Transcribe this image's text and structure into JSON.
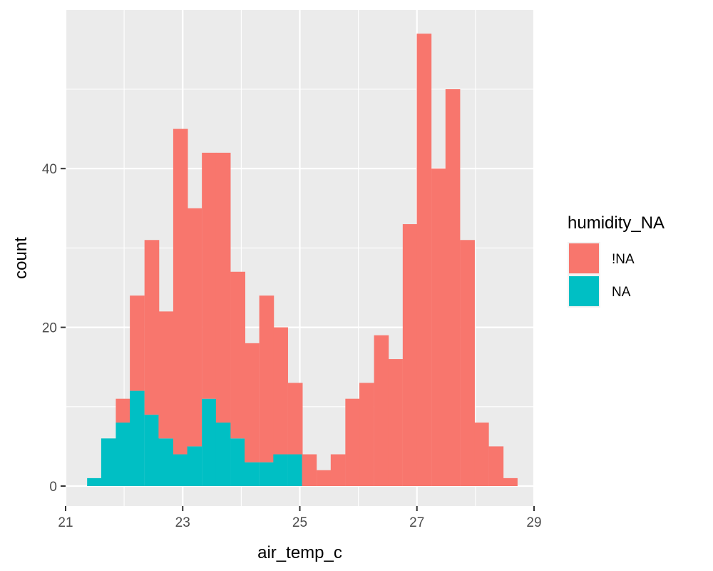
{
  "chart_data": {
    "type": "bar",
    "subtype": "stacked-histogram",
    "title": "",
    "xlabel": "air_temp_c",
    "ylabel": "count",
    "xlim": [
      21,
      29
    ],
    "ylim": [
      -2.5,
      60
    ],
    "x_ticks": [
      21,
      23,
      25,
      27,
      29
    ],
    "x_minor_ticks": [
      22,
      24,
      26,
      28
    ],
    "y_ticks": [
      0,
      20,
      40
    ],
    "y_minor_ticks": [
      10,
      30,
      50
    ],
    "bin_width": 0.245,
    "bin_centers": [
      21.49,
      21.73,
      21.98,
      22.22,
      22.47,
      22.71,
      22.96,
      23.2,
      23.45,
      23.69,
      23.94,
      24.18,
      24.43,
      24.67,
      24.92,
      25.16,
      25.41,
      25.65,
      25.9,
      26.14,
      26.39,
      26.63,
      26.88,
      27.12,
      27.37,
      27.61,
      27.86,
      28.1,
      28.35,
      28.59
    ],
    "series": [
      {
        "name": "!NA",
        "color": "#F8766D",
        "values": [
          0,
          0,
          3,
          12,
          22,
          16,
          41,
          30,
          31,
          34,
          21,
          15,
          21,
          16,
          9,
          4,
          2,
          4,
          11,
          13,
          19,
          16,
          33,
          57,
          40,
          50,
          31,
          8,
          5,
          1
        ]
      },
      {
        "name": "NA",
        "color": "#00BFC4",
        "values": [
          1,
          6,
          8,
          12,
          9,
          6,
          4,
          5,
          11,
          8,
          6,
          3,
          3,
          4,
          4,
          0,
          0,
          0,
          0,
          0,
          0,
          0,
          0,
          0,
          0,
          0,
          0,
          0,
          0,
          0
        ]
      }
    ],
    "grid": true,
    "legend": {
      "title": "humidity_NA",
      "position": "right",
      "entries": [
        {
          "label": "!NA",
          "color": "#F8766D"
        },
        {
          "label": "NA",
          "color": "#00BFC4"
        }
      ]
    }
  }
}
